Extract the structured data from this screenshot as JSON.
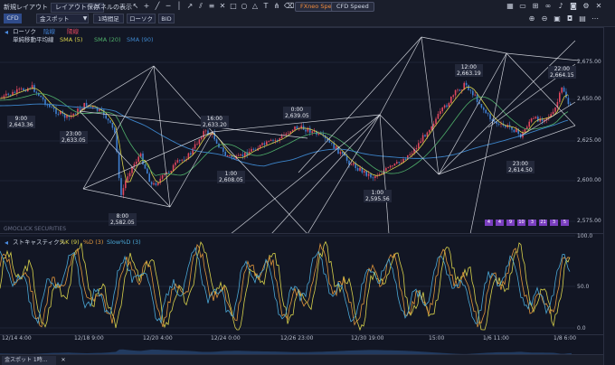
{
  "toolbar": {
    "new_layout": "新規レイアウト",
    "save_layout": "レイアウト保存",
    "panel_display": "パネルの表示",
    "fx_speed": "FXneo Speed",
    "cfd_speed": "CFD Speed",
    "product_tab": "CFD",
    "symbol": "金スポット",
    "timeframe": "1時間足",
    "chart_type": "ローソク",
    "bid": "BID"
  },
  "price_panel": {
    "legend_type": "ローソク",
    "legend_ashi": "陰線",
    "legend_ashi2": "陽線",
    "legend_ma": "単純移動平均線",
    "sma5": "SMA (5)",
    "sma20": "SMA (20)",
    "sma90": "SMA (90)",
    "watermark": "GMOCLICK SECURITIES",
    "y_ticks": [
      "2,675.00",
      "2,650.00",
      "2,625.00",
      "2,600.00",
      "2,575.00"
    ],
    "periods": [
      "4",
      "4",
      "9",
      "10",
      "3",
      "21",
      "3",
      "5"
    ],
    "annotations": [
      {
        "time": "9:00",
        "price": "2,643.36"
      },
      {
        "time": "23:00",
        "price": "2,633.05"
      },
      {
        "time": "8:00",
        "price": "2,582.05"
      },
      {
        "time": "16:00",
        "price": "2,633.20"
      },
      {
        "time": "1:00",
        "price": "2,608.05"
      },
      {
        "time": "0:00",
        "price": "2,639.05"
      },
      {
        "time": "1:00",
        "price": "2,595.56"
      },
      {
        "time": "12:00",
        "price": "2,663.19"
      },
      {
        "time": "23:00",
        "price": "2,614.50"
      },
      {
        "time": "22:00",
        "price": "2,664.15"
      }
    ]
  },
  "stoch_panel": {
    "name": "ストキャスティクス",
    "k": "%K (9)",
    "d": "%D (3)",
    "slow": "Slow%D (3)",
    "y_ticks": [
      "100.0",
      "50.0",
      "0.0"
    ]
  },
  "x_axis": [
    "12/14 4:00",
    "12/18 9:00",
    "12/20 4:00",
    "12/24 0:00",
    "12/26 23:00",
    "12/30 19:00",
    "15:00",
    "1/6 11:00",
    "1/8 6:00"
  ],
  "bottom_tab": "金スポット 1時...",
  "colors": {
    "background": "#121624",
    "toolbar": "#1a1e2b",
    "bull": "#e0475e",
    "bear": "#3f7fd0",
    "sma5": "#d7d14a",
    "sma20": "#4fae6a",
    "sma90": "#3c84c9",
    "k_line": "#d7d14a",
    "d_line": "#e0963c",
    "slow_line": "#4aa8d6",
    "pattern": "#e6e9f0",
    "period_badge": "#7a3fbf"
  }
}
